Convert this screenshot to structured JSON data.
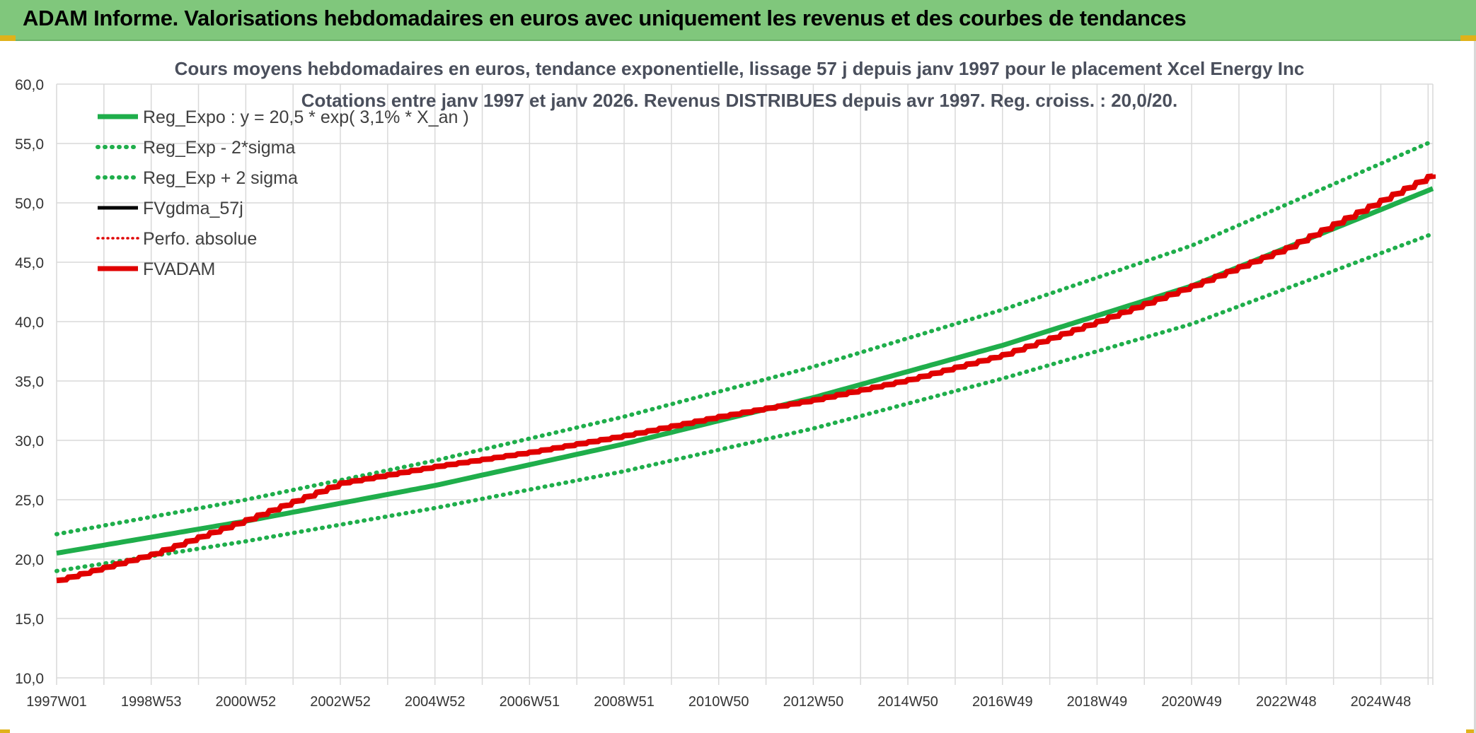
{
  "banner": {
    "title": "ADAM Informe. Valorisations hebdomadaires en euros avec uniquement les revenus et des courbes de tendances"
  },
  "colors": {
    "banner_bg": "#80c77c",
    "reg_green": "#1fae4b",
    "band_green": "#1fae4b",
    "fvadam_red": "#e00000",
    "perfo_red": "#e00000",
    "fvgdma_black": "#000000",
    "grid": "#d9d9d9"
  },
  "chart_data": {
    "type": "line",
    "title": "Cours moyens hebdomadaires en euros, tendance exponentielle, lissage 57 j depuis janv 1997 pour le placement Xcel Energy Inc",
    "subtitle": "Cotations entre janv 1997 et janv 2026. Revenus DISTRIBUES depuis avr 1997. Reg. croiss. : 20,0/20.",
    "xlabel": "",
    "ylabel": "",
    "ylim": [
      10,
      60
    ],
    "y_ticks": [
      "10,0",
      "15,0",
      "20,0",
      "25,0",
      "30,0",
      "35,0",
      "40,0",
      "45,0",
      "50,0",
      "55,0",
      "60,0"
    ],
    "x_tick_labels": [
      "1997W01",
      "1998W53",
      "2000W52",
      "2002W52",
      "2004W52",
      "2006W51",
      "2008W51",
      "2010W50",
      "2012W50",
      "2014W50",
      "2016W49",
      "2018W49",
      "2020W49",
      "2022W48",
      "2024W48"
    ],
    "x_years": [
      1997,
      1999,
      2001,
      2003,
      2005,
      2007,
      2009,
      2011,
      2013,
      2015,
      2017,
      2019,
      2021,
      2023,
      2025
    ],
    "xlim_years": [
      1997,
      2026.1
    ],
    "grid": true,
    "legend_position": "top-left",
    "legend": [
      {
        "label": "Reg_Expo : y = 20,5 * exp( 3,1% *  X_an )",
        "color": "#1fae4b",
        "style": "solid-thick"
      },
      {
        "label": "Reg_Exp - 2*sigma",
        "color": "#1fae4b",
        "style": "dotted"
      },
      {
        "label": "Reg_Exp + 2 sigma",
        "color": "#1fae4b",
        "style": "dotted"
      },
      {
        "label": "FVgdma_57j",
        "color": "#000000",
        "style": "solid"
      },
      {
        "label": "Perfo. absolue",
        "color": "#e00000",
        "style": "dotted-thin"
      },
      {
        "label": "FVADAM",
        "color": "#e00000",
        "style": "solid-thick"
      }
    ],
    "series": [
      {
        "name": "Reg_Expo : y = 20,5 * exp( 3,1% *  X_an )",
        "x": [
          1997,
          2001,
          2005,
          2009,
          2013,
          2017,
          2021,
          2026.1
        ],
        "values": [
          20.5,
          23.2,
          26.2,
          29.7,
          33.6,
          38.0,
          43.0,
          51.2
        ]
      },
      {
        "name": "Reg_Exp - 2*sigma",
        "x": [
          1997,
          2001,
          2005,
          2009,
          2013,
          2017,
          2021,
          2026.1
        ],
        "values": [
          19.0,
          21.5,
          24.3,
          27.4,
          31.0,
          35.2,
          39.8,
          47.4
        ]
      },
      {
        "name": "Reg_Exp + 2 sigma",
        "x": [
          1997,
          2001,
          2005,
          2009,
          2013,
          2017,
          2021,
          2026.1
        ],
        "values": [
          22.1,
          25.0,
          28.3,
          32.0,
          36.2,
          41.0,
          46.4,
          55.2
        ]
      },
      {
        "name": "FVADAM",
        "x": [
          1997,
          1999,
          2001,
          2003,
          2005,
          2007,
          2009,
          2011,
          2013,
          2015,
          2017,
          2019,
          2021,
          2023,
          2025,
          2026.1
        ],
        "values": [
          18.2,
          20.4,
          23.3,
          26.4,
          27.8,
          29.0,
          30.4,
          32.0,
          33.4,
          35.1,
          37.2,
          40.0,
          43.0,
          46.2,
          50.2,
          52.4
        ]
      }
    ]
  }
}
